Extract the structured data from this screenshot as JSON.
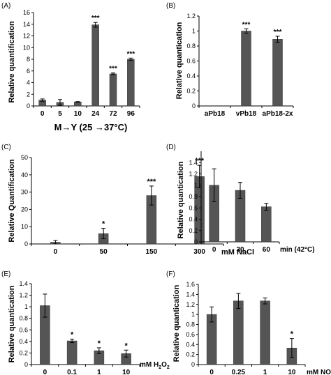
{
  "colors": {
    "bar": "#555555",
    "axis": "#000000",
    "text": "#000000"
  },
  "chart_data": [
    {
      "type": "bar",
      "panel_label": "(A)",
      "categories": [
        "0",
        "5",
        "10",
        "24",
        "72",
        "96"
      ],
      "values": [
        1.0,
        0.6,
        0.7,
        13.9,
        5.5,
        8.0
      ],
      "errors": [
        0.2,
        0.5,
        0.05,
        0.4,
        0.15,
        0.2
      ],
      "annotations": [
        "",
        "",
        "",
        "***",
        "***",
        "***"
      ],
      "ylim": [
        0,
        16
      ],
      "yticks": [
        0,
        2,
        4,
        6,
        8,
        10,
        12,
        14,
        16
      ],
      "ylabel": "Relative quantification",
      "xlabel": "M→Y (25 →37°C)",
      "xunit": "",
      "grid": false,
      "legend": "none"
    },
    {
      "type": "bar",
      "panel_label": "(B)",
      "categories": [
        "aPb18",
        "vPb18",
        "aPb18-2x"
      ],
      "values": [
        0,
        1.0,
        0.89
      ],
      "errors": [
        0,
        0.03,
        0.04
      ],
      "annotations": [
        "",
        "***",
        "***"
      ],
      "ylim": [
        0,
        1.2
      ],
      "yticks": [
        0,
        0.2,
        0.4,
        0.6,
        0.8,
        1,
        1.2
      ],
      "ylabel": "Relative quantication",
      "xlabel": "",
      "xunit": "",
      "grid": false,
      "legend": "none"
    },
    {
      "type": "bar",
      "panel_label": "(C)",
      "categories": [
        "0",
        "50",
        "150",
        "300"
      ],
      "values": [
        1.0,
        6.0,
        28.0,
        39.0
      ],
      "errors": [
        1.0,
        3.0,
        5.5,
        6.5
      ],
      "annotations": [
        "",
        "*",
        "***",
        "***"
      ],
      "ylim": [
        0,
        50
      ],
      "yticks": [
        0,
        10,
        20,
        30,
        40,
        50
      ],
      "ylabel": "Relative Quantification",
      "xlabel": "",
      "xunit": "mM NaCl",
      "grid": false,
      "legend": "none"
    },
    {
      "type": "bar",
      "panel_label": "(D)",
      "categories": [
        "0",
        "30",
        "60"
      ],
      "values": [
        1.0,
        0.91,
        0.62
      ],
      "errors": [
        0.29,
        0.14,
        0.06
      ],
      "annotations": [
        "",
        "",
        ""
      ],
      "ylim": [
        0,
        1.6
      ],
      "yticks": [
        0,
        0.2,
        0.4,
        0.6,
        0.8,
        1,
        1.2,
        1.4
      ],
      "ylabel": "Relative quantication",
      "xlabel": "",
      "xunit": "min (42°C)",
      "grid": false,
      "legend": "none"
    },
    {
      "type": "bar",
      "panel_label": "(E)",
      "categories": [
        "0",
        "0.1",
        "1",
        "10"
      ],
      "values": [
        1.02,
        0.41,
        0.24,
        0.19
      ],
      "errors": [
        0.2,
        0.03,
        0.05,
        0.06
      ],
      "annotations": [
        "",
        "*",
        "*",
        "*"
      ],
      "ylim": [
        0,
        1.4
      ],
      "yticks": [
        0,
        0.2,
        0.4,
        0.6,
        0.8,
        1,
        1.2,
        1.4
      ],
      "ylabel": "Relative quantication",
      "xlabel": "",
      "xunit": "mM H",
      "xunit_sub": "2",
      "xunit_tail": "O",
      "xunit_sub2": "2",
      "grid": false,
      "legend": "none"
    },
    {
      "type": "bar",
      "panel_label": "(F)",
      "categories": [
        "0",
        "0.25",
        "1",
        "10"
      ],
      "values": [
        1.0,
        1.27,
        1.27,
        0.33
      ],
      "errors": [
        0.15,
        0.15,
        0.06,
        0.19
      ],
      "annotations": [
        "",
        "",
        "",
        "*"
      ],
      "ylim": [
        0,
        1.6
      ],
      "yticks": [
        0,
        0.2,
        0.4,
        0.6,
        0.8,
        1,
        1.2,
        1.4,
        1.6
      ],
      "ylabel": "Relative quantication",
      "xlabel": "",
      "xunit": "mM NO",
      "grid": false,
      "legend": "none"
    }
  ]
}
